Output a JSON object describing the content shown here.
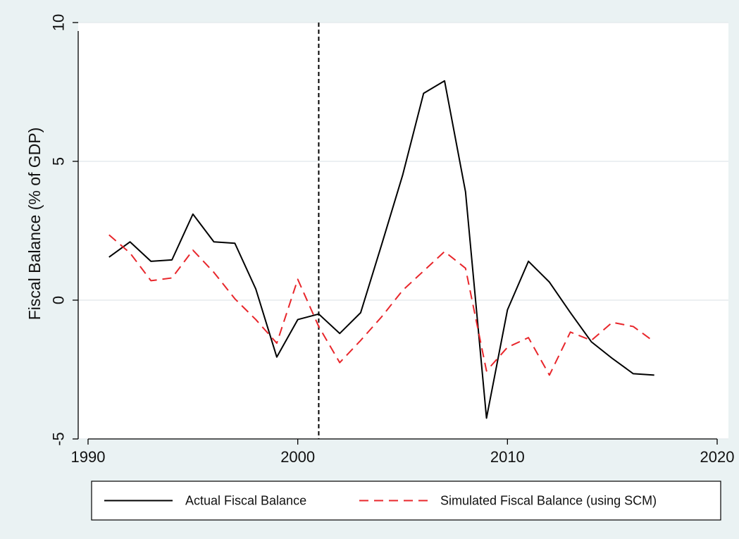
{
  "chart_data": {
    "type": "line",
    "title": "",
    "xlabel": "",
    "ylabel": "Fiscal Balance (% of GDP)",
    "xlim": [
      1990,
      2020
    ],
    "ylim": [
      -5,
      10
    ],
    "x_ticks": [
      1990,
      2000,
      2010,
      2020
    ],
    "y_ticks": [
      -5,
      0,
      5,
      10
    ],
    "x_tick_labels": [
      "1990",
      "2000",
      "2010",
      "2020"
    ],
    "y_tick_labels": [
      "-5",
      "0",
      "5",
      "10"
    ],
    "grid": true,
    "legend_position": "bottom",
    "reference_line": {
      "x": 2001,
      "style": "dashed",
      "color": "#000000"
    },
    "x": [
      1991,
      1992,
      1993,
      1994,
      1995,
      1996,
      1997,
      1998,
      1999,
      2000,
      2001,
      2002,
      2003,
      2004,
      2005,
      2006,
      2007,
      2008,
      2009,
      2010,
      2011,
      2012,
      2013,
      2014,
      2015,
      2016,
      2017
    ],
    "series": [
      {
        "name": "Actual Fiscal Balance",
        "color": "#000000",
        "style": "solid",
        "values": [
          1.55,
          2.1,
          1.4,
          1.45,
          3.1,
          2.1,
          2.05,
          0.4,
          -2.05,
          -0.7,
          -0.5,
          -1.2,
          -0.45,
          2.0,
          4.5,
          7.45,
          7.9,
          3.9,
          -4.25,
          -0.35,
          1.4,
          0.65,
          -0.45,
          -1.5,
          -2.1,
          -2.65,
          -2.7
        ]
      },
      {
        "name": "Simulated Fiscal Balance (using SCM)",
        "color": "#e8262b",
        "style": "dashed",
        "values": [
          2.35,
          1.7,
          0.7,
          0.8,
          1.8,
          1.0,
          0.05,
          -0.7,
          -1.55,
          0.75,
          -0.95,
          -2.25,
          -1.45,
          -0.6,
          0.35,
          1.05,
          1.75,
          1.15,
          -2.55,
          -1.7,
          -1.35,
          -2.7,
          -1.15,
          -1.45,
          -0.8,
          -0.95,
          -1.5
        ]
      }
    ]
  }
}
